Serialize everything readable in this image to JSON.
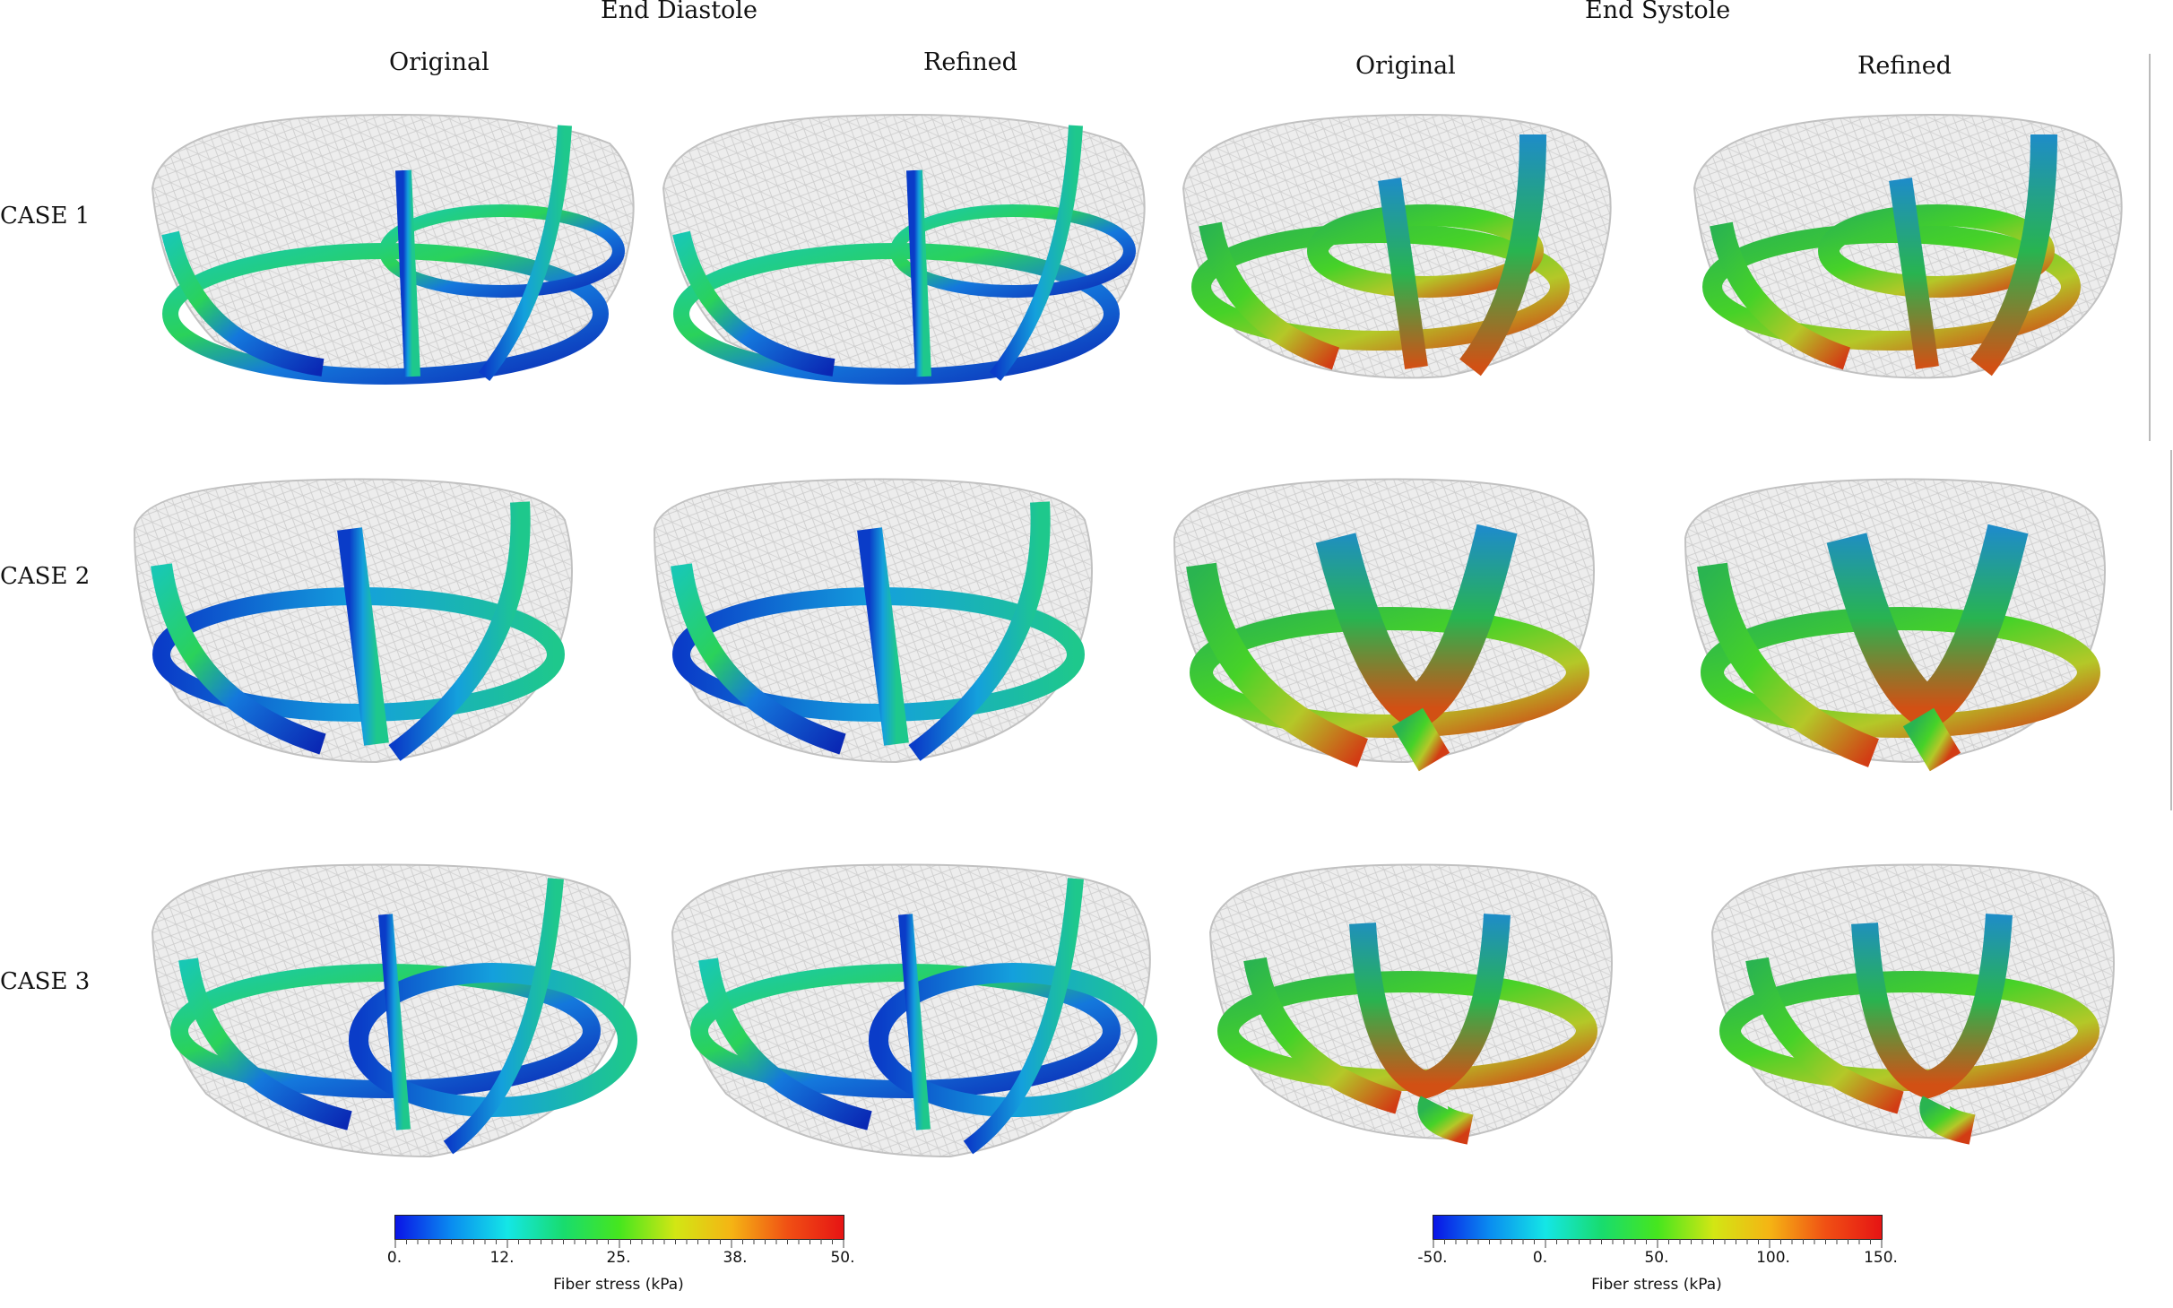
{
  "phases": [
    {
      "label": "End Diastole",
      "columns": [
        "Original",
        "Refined"
      ]
    },
    {
      "label": "End Systole",
      "columns": [
        "Original",
        "Refined"
      ]
    }
  ],
  "cases": [
    "CASE 1",
    "CASE 2",
    "CASE 3"
  ],
  "colorbars": [
    {
      "title": "Fiber stress (kPa)",
      "ticks": [
        "0.",
        "12.",
        "25.",
        "38.",
        "50."
      ],
      "range": [
        0,
        50
      ]
    },
    {
      "title": "Fiber stress (kPa)",
      "ticks": [
        "-50.",
        "0.",
        "50.",
        "100.",
        "150."
      ],
      "range": [
        -50,
        150
      ]
    }
  ],
  "colormap": [
    "#0a14e6",
    "#0a8cf0",
    "#14e6e6",
    "#18dc6e",
    "#46e61e",
    "#d2e614",
    "#f5b414",
    "#f05014",
    "#e61414"
  ],
  "scene": "heart-mesh-with-fiber-stress-bands"
}
